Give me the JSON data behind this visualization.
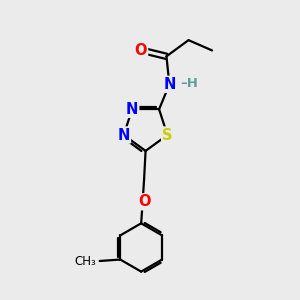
{
  "background_color": "#ebebeb",
  "bond_color": "#000000",
  "atom_colors": {
    "O": "#ff0000",
    "N": "#0000ff",
    "S": "#cccc00",
    "H": "#5f9ea0",
    "C": "#000000"
  },
  "figsize": [
    3.0,
    3.0
  ],
  "dpi": 100,
  "bond_lw": 1.6,
  "font_size": 10.5
}
